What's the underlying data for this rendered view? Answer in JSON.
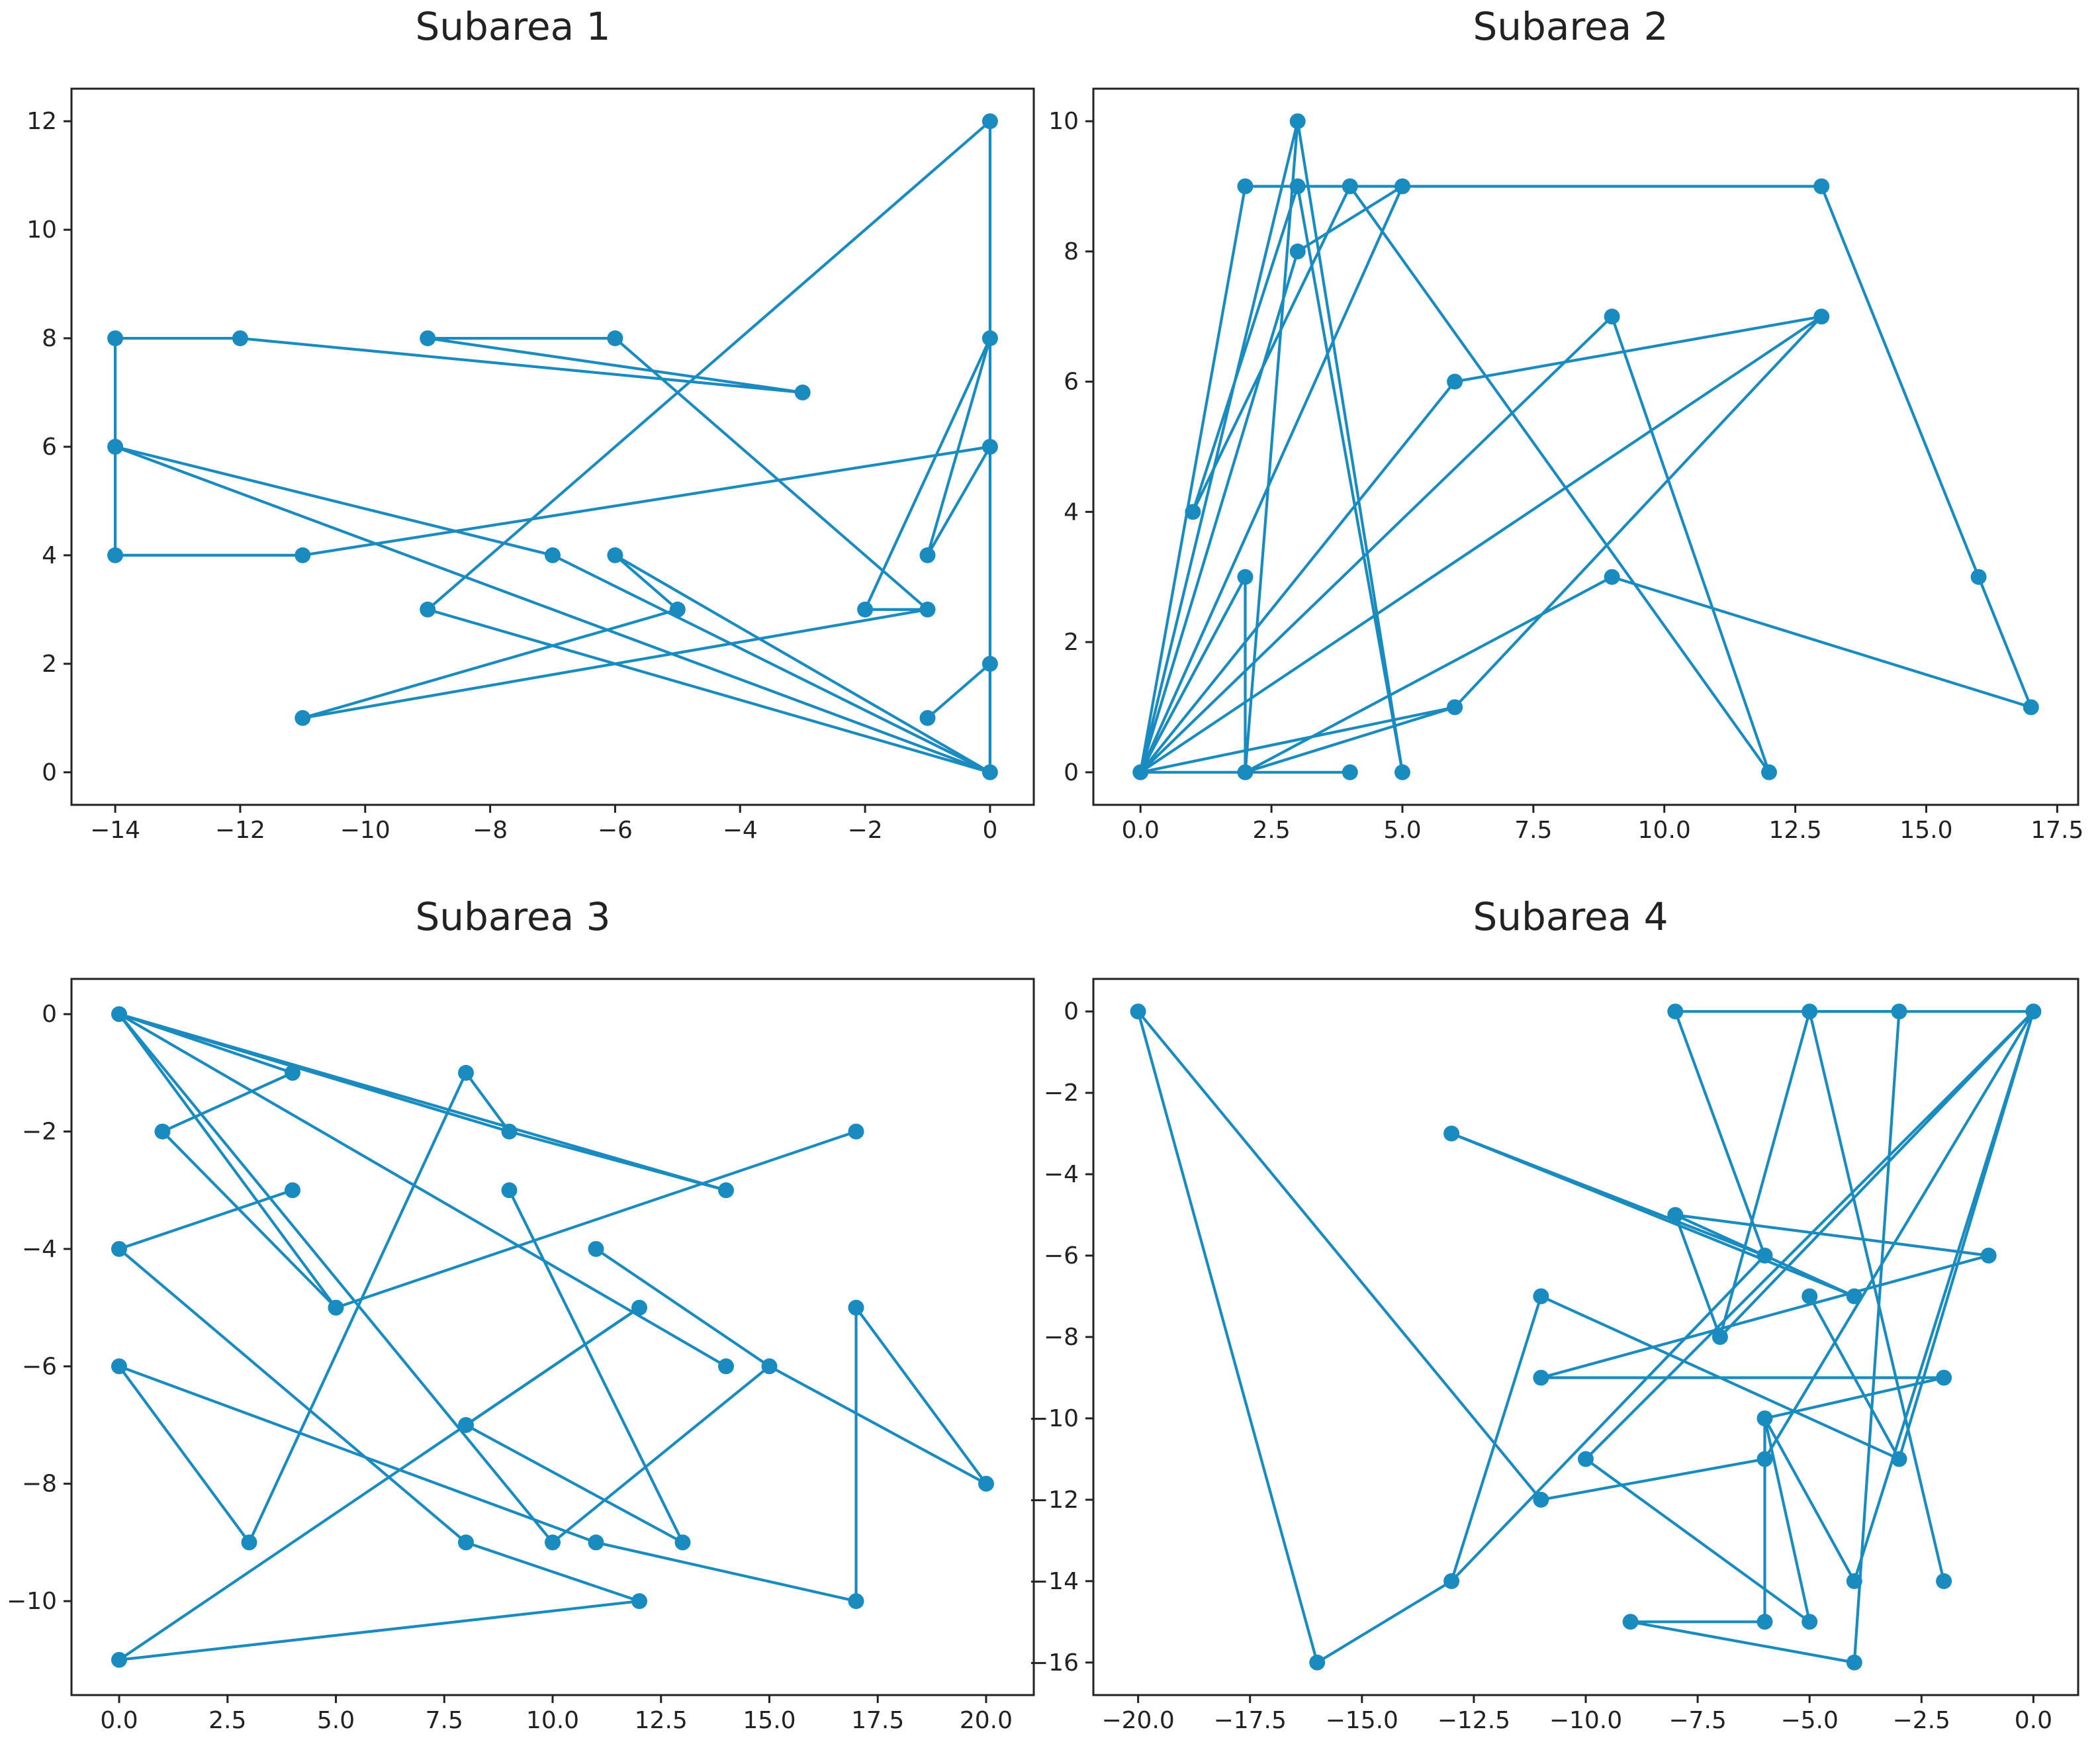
{
  "figure": {
    "line_color": "#1a8bbf",
    "frame_color": "#222222",
    "background": "#ffffff"
  },
  "chart_data": [
    {
      "type": "line",
      "title": "Subarea 1",
      "xlabel": "",
      "ylabel": "",
      "grid": false,
      "xlim": [
        -14.7,
        0.7
      ],
      "ylim": [
        -0.6,
        12.6
      ],
      "xticks": [
        -14,
        -12,
        -10,
        -8,
        -6,
        -4,
        -2,
        0
      ],
      "xtick_labels": [
        "−14",
        "−12",
        "−10",
        "−8",
        "−6",
        "−4",
        "−2",
        "0"
      ],
      "yticks": [
        0,
        2,
        4,
        6,
        8,
        10,
        12
      ],
      "ytick_labels": [
        "0",
        "2",
        "4",
        "6",
        "8",
        "10",
        "12"
      ],
      "series": [
        {
          "points": [
            [
              -3,
              7
            ],
            [
              -9,
              8
            ],
            [
              -6,
              8
            ],
            [
              -1,
              3
            ],
            [
              -2,
              3
            ],
            [
              0,
              8
            ],
            [
              -1,
              4
            ],
            [
              0,
              6
            ],
            [
              -11,
              4
            ],
            [
              -14,
              4
            ],
            [
              -14,
              8
            ],
            [
              -12,
              8
            ],
            [
              -3,
              7
            ]
          ]
        },
        {
          "points": [
            [
              -14,
              6
            ],
            [
              0,
              0
            ],
            [
              -9,
              3
            ],
            [
              0,
              12
            ],
            [
              0,
              0
            ],
            [
              -6,
              4
            ],
            [
              -5,
              3
            ],
            [
              -11,
              1
            ],
            [
              -1,
              3
            ]
          ]
        },
        {
          "points": [
            [
              -14,
              6
            ],
            [
              -7,
              4
            ],
            [
              0,
              0
            ],
            [
              0,
              2
            ],
            [
              -1,
              1
            ]
          ]
        }
      ]
    },
    {
      "type": "line",
      "title": "Subarea 2",
      "xlabel": "",
      "ylabel": "",
      "grid": false,
      "xlim": [
        -0.9,
        17.9
      ],
      "ylim": [
        -0.5,
        10.5
      ],
      "xticks": [
        0,
        2.5,
        5,
        7.5,
        10,
        12.5,
        15,
        17.5
      ],
      "xtick_labels": [
        "0.0",
        "2.5",
        "5.0",
        "7.5",
        "10.0",
        "12.5",
        "15.0",
        "17.5"
      ],
      "yticks": [
        0,
        2,
        4,
        6,
        8,
        10
      ],
      "ytick_labels": [
        "0",
        "2",
        "4",
        "6",
        "8",
        "10"
      ],
      "series": [
        {
          "points": [
            [
              0,
              0
            ],
            [
              2,
              3
            ],
            [
              2,
              0
            ],
            [
              4,
              0
            ],
            [
              0,
              0
            ],
            [
              6,
              1
            ],
            [
              2,
              0
            ],
            [
              9,
              3
            ],
            [
              17,
              1
            ],
            [
              16,
              3
            ],
            [
              13,
              9
            ],
            [
              3,
              9
            ],
            [
              5,
              0
            ],
            [
              3,
              10
            ],
            [
              2,
              0
            ],
            [
              0,
              0
            ],
            [
              2,
              9
            ],
            [
              3,
              9
            ],
            [
              1,
              4
            ],
            [
              4,
              9
            ],
            [
              12,
              0
            ],
            [
              9,
              7
            ],
            [
              0,
              0
            ],
            [
              13,
              7
            ],
            [
              6,
              1
            ]
          ]
        },
        {
          "points": [
            [
              0,
              0
            ],
            [
              3,
              10
            ],
            [
              0,
              0
            ],
            [
              5,
              9
            ],
            [
              3,
              8
            ],
            [
              0,
              0
            ],
            [
              6,
              6
            ],
            [
              13,
              7
            ]
          ]
        }
      ]
    },
    {
      "type": "line",
      "title": "Subarea 3",
      "xlabel": "",
      "ylabel": "",
      "grid": false,
      "xlim": [
        -1.1,
        21.1
      ],
      "ylim": [
        -11.6,
        0.6
      ],
      "xticks": [
        0,
        2.5,
        5,
        7.5,
        10,
        12.5,
        15,
        17.5,
        20
      ],
      "xtick_labels": [
        "0.0",
        "2.5",
        "5.0",
        "7.5",
        "10.0",
        "12.5",
        "15.0",
        "17.5",
        "20.0"
      ],
      "yticks": [
        0,
        -2,
        -4,
        -6,
        -8,
        -10
      ],
      "ytick_labels": [
        "0",
        "−2",
        "−4",
        "−6",
        "−8",
        "−10"
      ],
      "series": [
        {
          "points": [
            [
              0,
              0
            ],
            [
              9,
              -2
            ],
            [
              14,
              -3
            ],
            [
              0,
              0
            ],
            [
              5,
              -5
            ],
            [
              17,
              -2
            ]
          ]
        },
        {
          "points": [
            [
              0,
              0
            ],
            [
              14,
              -6
            ]
          ]
        },
        {
          "points": [
            [
              0,
              0
            ],
            [
              10,
              -9
            ],
            [
              15,
              -6
            ],
            [
              20,
              -8
            ]
          ]
        },
        {
          "points": [
            [
              0,
              0
            ],
            [
              4,
              -1
            ],
            [
              1,
              -2
            ],
            [
              5,
              -5
            ]
          ]
        },
        {
          "points": [
            [
              0,
              -4
            ],
            [
              4,
              -3
            ]
          ]
        },
        {
          "points": [
            [
              0,
              -4
            ],
            [
              8,
              -9
            ],
            [
              12,
              -10
            ],
            [
              0,
              -11
            ],
            [
              12,
              -5
            ]
          ]
        },
        {
          "points": [
            [
              0,
              -6
            ],
            [
              3,
              -9
            ],
            [
              8,
              -1
            ],
            [
              9,
              -2
            ]
          ]
        },
        {
          "points": [
            [
              0,
              -6
            ],
            [
              11,
              -9
            ],
            [
              17,
              -10
            ],
            [
              17,
              -5
            ],
            [
              20,
              -8
            ]
          ]
        },
        {
          "points": [
            [
              9,
              -3
            ],
            [
              13,
              -9
            ],
            [
              8,
              -7
            ],
            [
              12,
              -5
            ]
          ]
        },
        {
          "points": [
            [
              11,
              -4
            ],
            [
              15,
              -6
            ]
          ]
        }
      ]
    },
    {
      "type": "line",
      "title": "Subarea 4",
      "xlabel": "",
      "ylabel": "",
      "grid": false,
      "xlim": [
        -21.0,
        1.0
      ],
      "ylim": [
        -16.8,
        0.8
      ],
      "xticks": [
        -20,
        -17.5,
        -15,
        -12.5,
        -10,
        -7.5,
        -5,
        -2.5,
        0
      ],
      "xtick_labels": [
        "−20.0",
        "−17.5",
        "−15.0",
        "−12.5",
        "−10.0",
        "−7.5",
        "−5.0",
        "−2.5",
        "0.0"
      ],
      "yticks": [
        0,
        -2,
        -4,
        -6,
        -8,
        -10,
        -12,
        -14,
        -16
      ],
      "ytick_labels": [
        "0",
        "−2",
        "−4",
        "−6",
        "−8",
        "−10",
        "−12",
        "−14",
        "−16"
      ],
      "series": [
        {
          "points": [
            [
              -20,
              0
            ],
            [
              -16,
              -16
            ],
            [
              -13,
              -14
            ],
            [
              -13,
              -14
            ]
          ]
        },
        {
          "points": [
            [
              -20,
              0
            ],
            [
              -11,
              -12
            ],
            [
              -6,
              -11
            ],
            [
              0,
              0
            ],
            [
              -3,
              -11
            ]
          ]
        },
        {
          "points": [
            [
              -13,
              -14
            ],
            [
              -11,
              -7
            ],
            [
              -3,
              -11
            ]
          ]
        },
        {
          "points": [
            [
              -13,
              -14
            ],
            [
              -6,
              -6
            ],
            [
              -8,
              0
            ],
            [
              -3,
              0
            ],
            [
              -4,
              -16
            ],
            [
              -9,
              -15
            ],
            [
              -6,
              -15
            ],
            [
              -6,
              -10
            ],
            [
              -2,
              -9
            ],
            [
              -11,
              -9
            ],
            [
              -1,
              -6
            ],
            [
              -8,
              -5
            ]
          ]
        },
        {
          "points": [
            [
              -13,
              -3
            ],
            [
              -4,
              -7
            ],
            [
              -8,
              -5
            ],
            [
              -7,
              -8
            ],
            [
              -5,
              0
            ],
            [
              -2,
              -14
            ]
          ]
        },
        {
          "points": [
            [
              -7,
              -8
            ],
            [
              0,
              0
            ],
            [
              -10,
              -11
            ]
          ]
        },
        {
          "points": [
            [
              -10,
              -11
            ],
            [
              -5,
              -15
            ],
            [
              -6,
              -10
            ],
            [
              -4,
              -14
            ],
            [
              0,
              0
            ],
            [
              -5,
              0
            ]
          ]
        },
        {
          "points": [
            [
              -5,
              -7
            ],
            [
              -3,
              -11
            ]
          ]
        },
        {
          "points": [
            [
              -13,
              -3
            ],
            [
              -6,
              -6
            ]
          ]
        }
      ]
    }
  ]
}
